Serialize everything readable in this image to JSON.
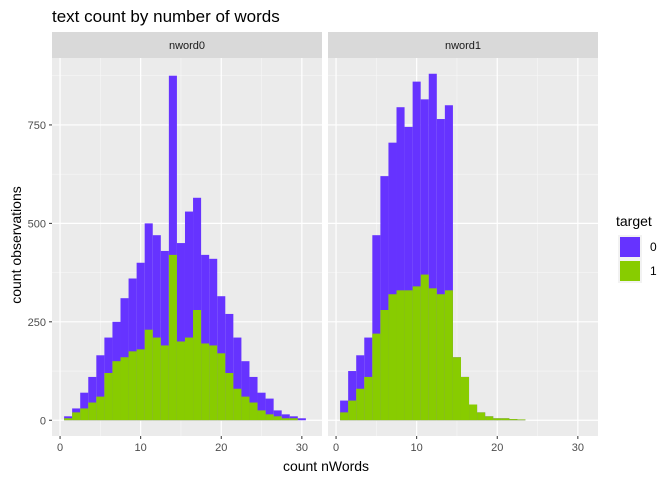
{
  "chart_data": {
    "type": "bar",
    "title": "text count by number of words",
    "xlabel": "count nWords",
    "ylabel": "count observations",
    "xlim": [
      -1,
      32.5
    ],
    "ylim": [
      -40,
      920
    ],
    "x_ticks": [
      0,
      10,
      20,
      30
    ],
    "y_ticks": [
      0,
      250,
      500,
      750
    ],
    "grid": true,
    "legend": {
      "title": "target",
      "position": "right",
      "entries": [
        {
          "label": "0",
          "color": "#6633FF"
        },
        {
          "label": "1",
          "color": "#88CC00"
        }
      ]
    },
    "panels": [
      {
        "strip": "nword0",
        "x": [
          1,
          2,
          3,
          4,
          5,
          6,
          7,
          8,
          9,
          10,
          11,
          12,
          13,
          14,
          15,
          16,
          17,
          18,
          19,
          20,
          21,
          22,
          23,
          24,
          25,
          26,
          27,
          28,
          29,
          30
        ],
        "series": [
          {
            "name": "0",
            "values": [
              10,
              30,
              70,
              110,
              165,
              210,
              250,
              310,
              360,
              400,
              500,
              470,
              430,
              875,
              450,
              530,
              565,
              420,
              410,
              315,
              270,
              210,
              150,
              110,
              70,
              55,
              25,
              15,
              10,
              5
            ]
          },
          {
            "name": "1",
            "values": [
              5,
              20,
              30,
              45,
              60,
              120,
              150,
              160,
              175,
              180,
              230,
              210,
              190,
              420,
              200,
              210,
              280,
              195,
              190,
              170,
              120,
              80,
              60,
              45,
              25,
              15,
              10,
              5,
              5,
              0
            ]
          }
        ]
      },
      {
        "strip": "nword1",
        "x": [
          1,
          2,
          3,
          4,
          5,
          6,
          7,
          8,
          9,
          10,
          11,
          12,
          13,
          14,
          15,
          16,
          17,
          18,
          19,
          20,
          21,
          22,
          23,
          24,
          25,
          26,
          27,
          28,
          29,
          30
        ],
        "series": [
          {
            "name": "0",
            "values": [
              50,
              125,
              165,
              210,
              470,
              620,
              705,
              795,
              745,
              860,
              815,
              880,
              765,
              800,
              160,
              110,
              40,
              20,
              10,
              5,
              5,
              3,
              2,
              0,
              0,
              0,
              0,
              0,
              0,
              0
            ]
          },
          {
            "name": "1",
            "values": [
              20,
              50,
              80,
              110,
              220,
              280,
              320,
              330,
              330,
              340,
              370,
              335,
              320,
              330,
              160,
              110,
              40,
              20,
              10,
              5,
              5,
              3,
              2,
              0,
              0,
              0,
              0,
              0,
              0,
              0
            ]
          }
        ]
      }
    ]
  }
}
